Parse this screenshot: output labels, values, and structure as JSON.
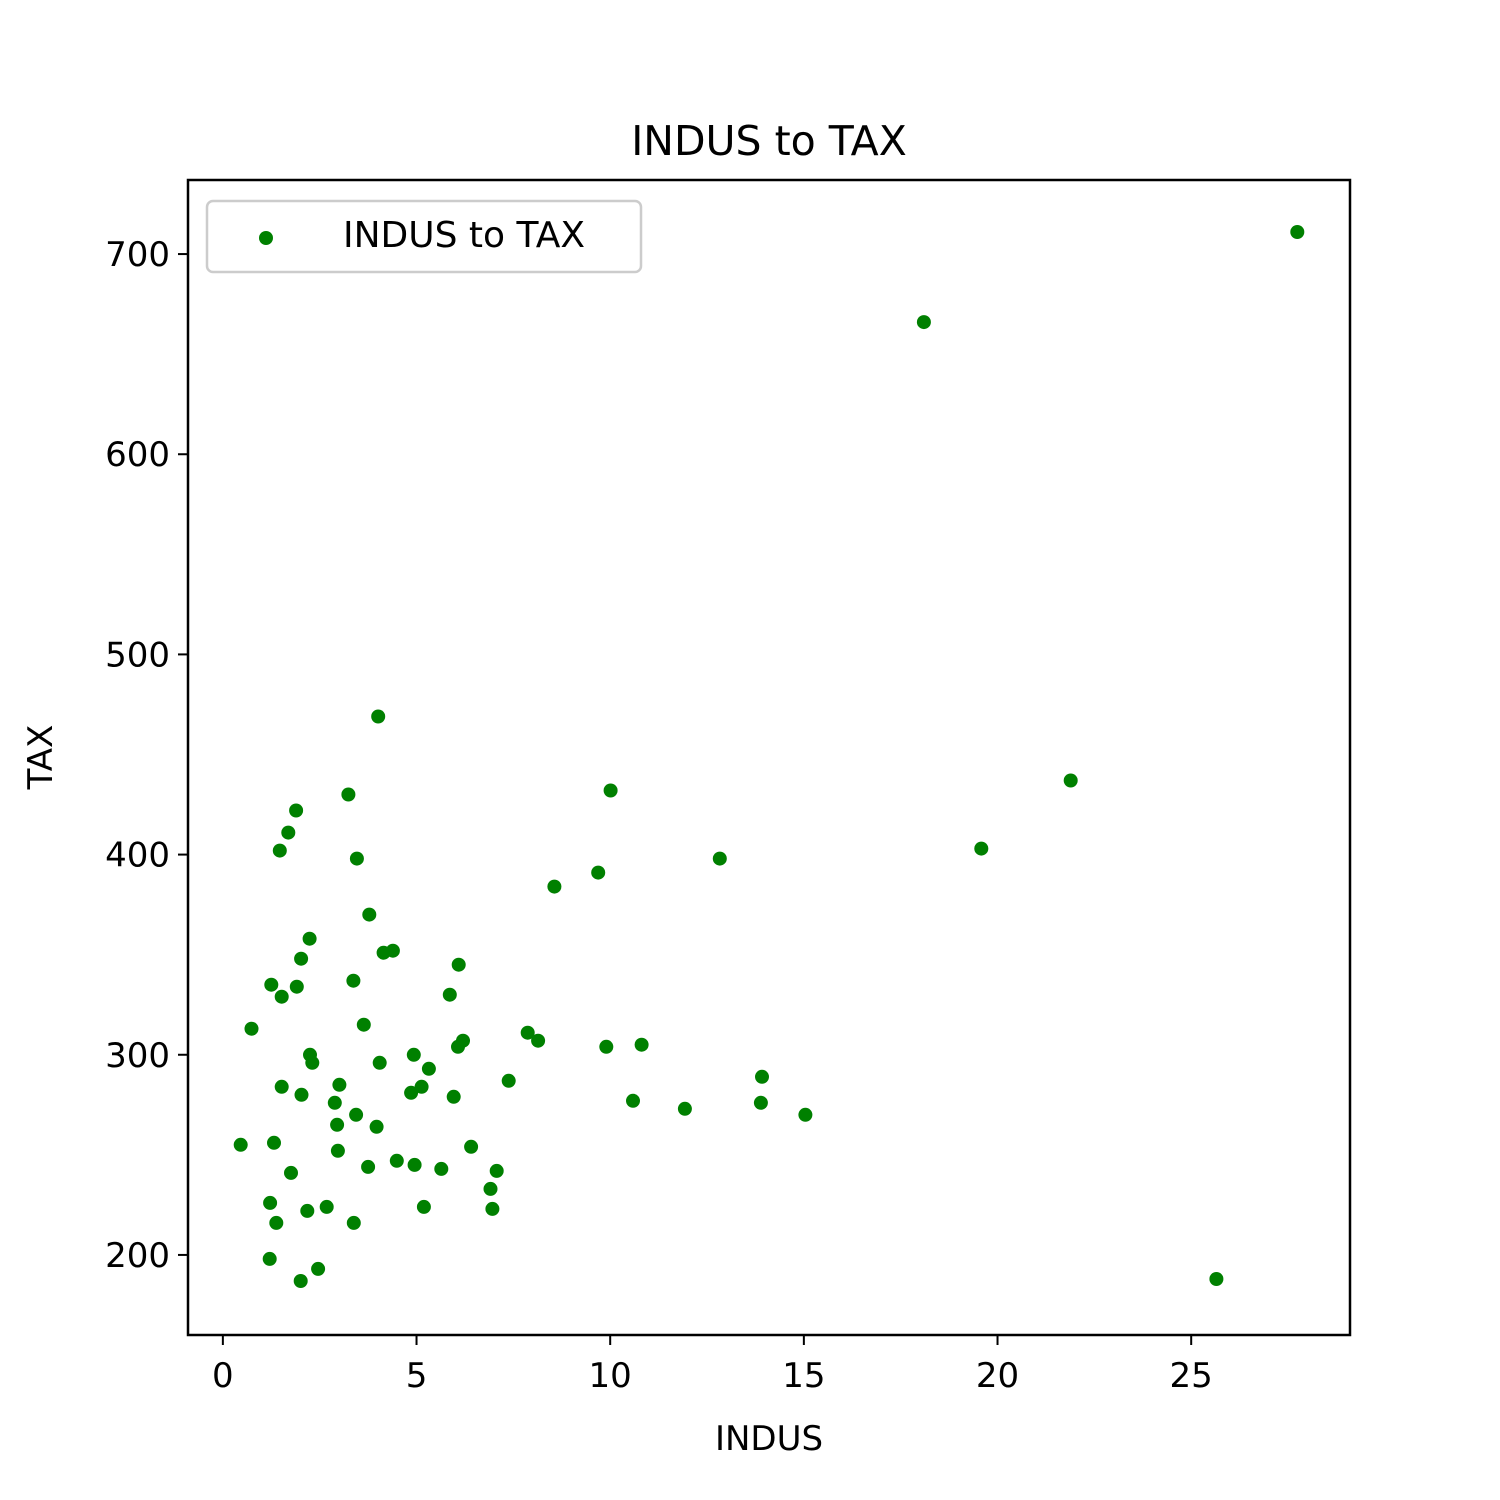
{
  "chart_data": {
    "type": "scatter",
    "title": "INDUS to TAX",
    "xlabel": "INDUS",
    "ylabel": "TAX",
    "xlim": [
      -0.9,
      29.1
    ],
    "ylim": [
      160,
      737
    ],
    "xticks": [
      0,
      5,
      10,
      15,
      20,
      25
    ],
    "yticks": [
      200,
      300,
      400,
      500,
      600,
      700
    ],
    "grid": false,
    "legend": {
      "position": "top-left"
    },
    "series": [
      {
        "name": "INDUS to TAX",
        "color": "#008000",
        "marker": "circle",
        "points": [
          [
            0.46,
            255
          ],
          [
            0.74,
            313
          ],
          [
            1.21,
            198
          ],
          [
            1.22,
            226
          ],
          [
            1.25,
            335
          ],
          [
            1.32,
            256
          ],
          [
            1.38,
            216
          ],
          [
            1.47,
            402
          ],
          [
            1.52,
            284
          ],
          [
            1.52,
            329
          ],
          [
            1.69,
            411
          ],
          [
            1.76,
            241
          ],
          [
            1.89,
            422
          ],
          [
            1.91,
            334
          ],
          [
            2.01,
            187
          ],
          [
            2.02,
            348
          ],
          [
            2.03,
            280
          ],
          [
            2.18,
            222
          ],
          [
            2.24,
            358
          ],
          [
            2.25,
            300
          ],
          [
            2.31,
            296
          ],
          [
            2.46,
            193
          ],
          [
            2.68,
            224
          ],
          [
            2.89,
            276
          ],
          [
            2.95,
            265
          ],
          [
            2.97,
            252
          ],
          [
            3.01,
            285
          ],
          [
            3.24,
            430
          ],
          [
            3.37,
            337
          ],
          [
            3.38,
            216
          ],
          [
            3.44,
            270
          ],
          [
            3.46,
            398
          ],
          [
            3.64,
            315
          ],
          [
            3.75,
            244
          ],
          [
            3.78,
            370
          ],
          [
            3.97,
            264
          ],
          [
            4.01,
            469
          ],
          [
            4.05,
            296
          ],
          [
            4.15,
            351
          ],
          [
            4.39,
            352
          ],
          [
            4.49,
            247
          ],
          [
            4.86,
            281
          ],
          [
            4.93,
            300
          ],
          [
            4.95,
            245
          ],
          [
            5.13,
            284
          ],
          [
            5.19,
            224
          ],
          [
            5.32,
            293
          ],
          [
            5.64,
            243
          ],
          [
            5.86,
            330
          ],
          [
            5.96,
            279
          ],
          [
            6.07,
            304
          ],
          [
            6.09,
            345
          ],
          [
            6.2,
            307
          ],
          [
            6.41,
            254
          ],
          [
            6.91,
            233
          ],
          [
            6.96,
            223
          ],
          [
            7.07,
            242
          ],
          [
            7.38,
            287
          ],
          [
            7.87,
            311
          ],
          [
            8.14,
            307
          ],
          [
            8.56,
            384
          ],
          [
            9.69,
            391
          ],
          [
            9.9,
            304
          ],
          [
            10.01,
            432
          ],
          [
            10.59,
            277
          ],
          [
            10.81,
            305
          ],
          [
            11.93,
            273
          ],
          [
            12.83,
            398
          ],
          [
            13.89,
            276
          ],
          [
            13.92,
            289
          ],
          [
            15.04,
            270
          ],
          [
            18.1,
            666
          ],
          [
            19.58,
            403
          ],
          [
            21.89,
            437
          ],
          [
            25.65,
            188
          ],
          [
            27.74,
            711
          ]
        ]
      }
    ]
  }
}
